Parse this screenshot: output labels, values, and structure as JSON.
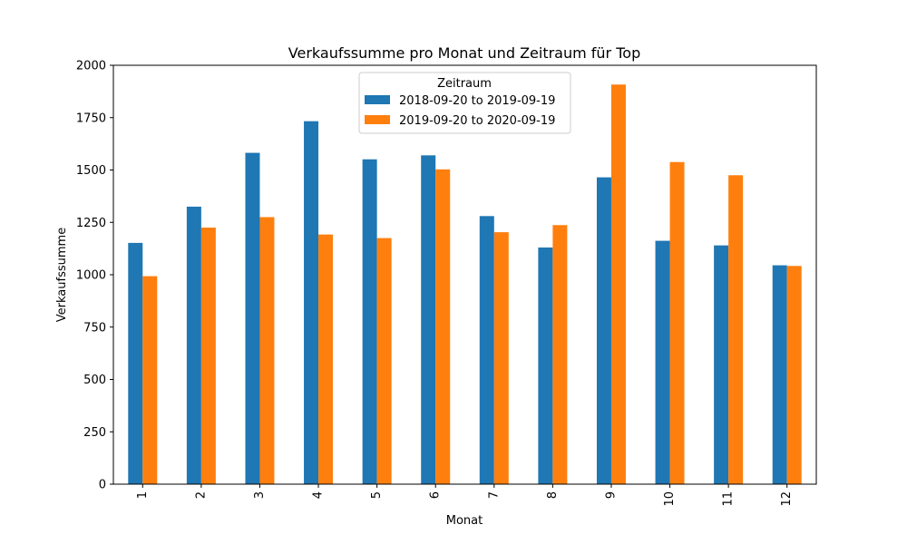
{
  "chart_data": {
    "type": "bar",
    "title": "Verkaufssumme pro Monat und Zeitraum für Top",
    "xlabel": "Monat",
    "ylabel": "Verkaufssumme",
    "categories": [
      "1",
      "2",
      "3",
      "4",
      "5",
      "6",
      "7",
      "8",
      "9",
      "10",
      "11",
      "12"
    ],
    "ylim": [
      0,
      2000
    ],
    "yticks": [
      "0",
      "250",
      "500",
      "750",
      "1000",
      "1250",
      "1500",
      "1750",
      "2000"
    ],
    "legend": {
      "title": "Zeitraum",
      "placement": "upper-center"
    },
    "grid": false,
    "series": [
      {
        "name": "2018-09-20 to 2019-09-19",
        "color": "#1f77b4",
        "values": [
          1152,
          1325,
          1582,
          1733,
          1551,
          1570,
          1280,
          1130,
          1465,
          1162,
          1140,
          1045
        ]
      },
      {
        "name": "2019-09-20 to 2020-09-19",
        "color": "#ff7f0e",
        "values": [
          993,
          1225,
          1275,
          1192,
          1175,
          1503,
          1203,
          1237,
          1908,
          1538,
          1475,
          1042
        ]
      }
    ]
  }
}
